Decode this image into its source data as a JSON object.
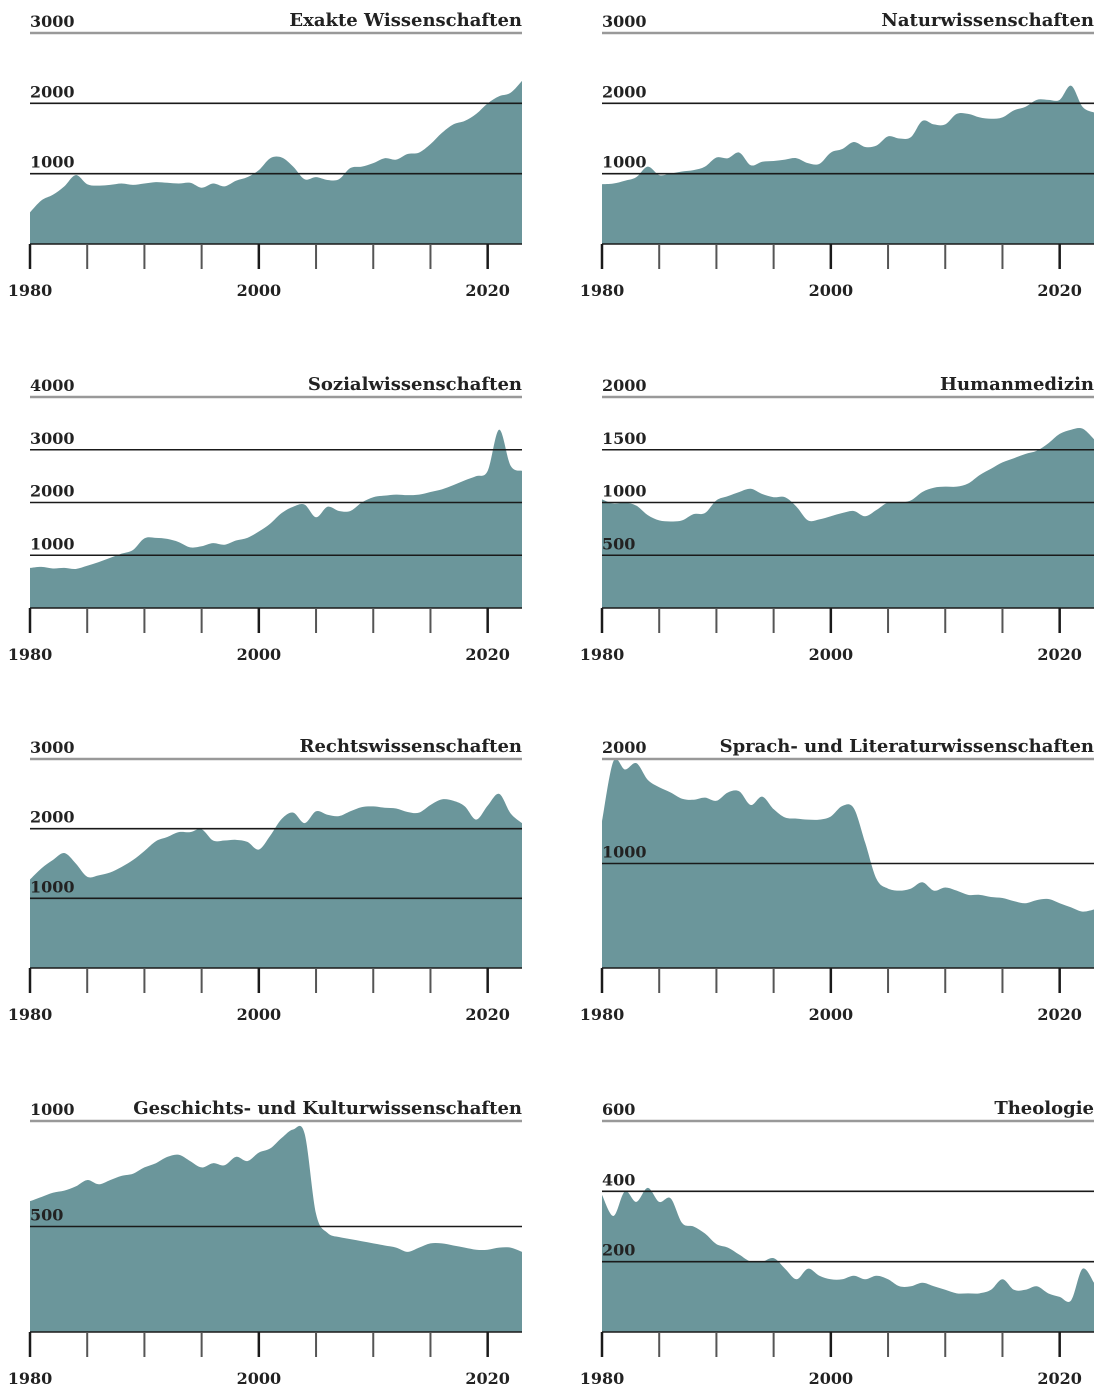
{
  "fill_color": "#6b969b",
  "line_color": "#1a1a1a",
  "top_line_color": "#999999",
  "x_ticks": [
    "1980",
    "2000",
    "2020"
  ],
  "chart_data": [
    {
      "type": "area",
      "title": "Exakte Wissenschaften",
      "ylim": [
        0,
        3000
      ],
      "yticks": [
        1000,
        2000,
        3000
      ],
      "ytick_labels": [
        "1000",
        "2000",
        "3000"
      ],
      "x": [
        1980,
        1981,
        1982,
        1983,
        1984,
        1985,
        1986,
        1987,
        1988,
        1989,
        1990,
        1991,
        1992,
        1993,
        1994,
        1995,
        1996,
        1997,
        1998,
        1999,
        2000,
        2001,
        2002,
        2003,
        2004,
        2005,
        2006,
        2007,
        2008,
        2009,
        2010,
        2011,
        2012,
        2013,
        2014,
        2015,
        2016,
        2017,
        2018,
        2019,
        2020,
        2021,
        2022,
        2023
      ],
      "values": [
        450,
        620,
        700,
        820,
        980,
        850,
        830,
        840,
        860,
        840,
        860,
        880,
        870,
        860,
        870,
        800,
        860,
        820,
        900,
        950,
        1050,
        1220,
        1230,
        1100,
        920,
        950,
        910,
        920,
        1080,
        1100,
        1150,
        1220,
        1200,
        1280,
        1300,
        1420,
        1580,
        1700,
        1750,
        1850,
        2000,
        2100,
        2150,
        2320
      ]
    },
    {
      "type": "area",
      "title": "Naturwissenschaften",
      "ylim": [
        0,
        3000
      ],
      "yticks": [
        1000,
        2000,
        3000
      ],
      "ytick_labels": [
        "1000",
        "2000",
        "3000"
      ],
      "x": [
        1980,
        1981,
        1982,
        1983,
        1984,
        1985,
        1986,
        1987,
        1988,
        1989,
        1990,
        1991,
        1992,
        1993,
        1994,
        1995,
        1996,
        1997,
        1998,
        1999,
        2000,
        2001,
        2002,
        2003,
        2004,
        2005,
        2006,
        2007,
        2008,
        2009,
        2010,
        2011,
        2012,
        2013,
        2014,
        2015,
        2016,
        2017,
        2018,
        2019,
        2020,
        2021,
        2022,
        2023
      ],
      "values": [
        850,
        860,
        900,
        950,
        1100,
        980,
        1000,
        1030,
        1050,
        1100,
        1230,
        1220,
        1300,
        1120,
        1170,
        1180,
        1200,
        1220,
        1150,
        1140,
        1300,
        1350,
        1450,
        1380,
        1400,
        1530,
        1500,
        1520,
        1750,
        1700,
        1700,
        1850,
        1850,
        1800,
        1780,
        1800,
        1900,
        1950,
        2050,
        2050,
        2050,
        2250,
        1950,
        1870
      ]
    },
    {
      "type": "area",
      "title": "Sozialwissenschaften",
      "ylim": [
        0,
        4000
      ],
      "yticks": [
        1000,
        2000,
        3000,
        4000
      ],
      "ytick_labels": [
        "1000",
        "2000",
        "3000",
        "4000"
      ],
      "x": [
        1980,
        1981,
        1982,
        1983,
        1984,
        1985,
        1986,
        1987,
        1988,
        1989,
        1990,
        1991,
        1992,
        1993,
        1994,
        1995,
        1996,
        1997,
        1998,
        1999,
        2000,
        2001,
        2002,
        2003,
        2004,
        2005,
        2006,
        2007,
        2008,
        2009,
        2010,
        2011,
        2012,
        2013,
        2014,
        2015,
        2016,
        2017,
        2018,
        2019,
        2020,
        2021,
        2022,
        2023
      ],
      "values": [
        760,
        780,
        750,
        760,
        740,
        800,
        870,
        950,
        1030,
        1100,
        1320,
        1330,
        1310,
        1250,
        1150,
        1170,
        1230,
        1200,
        1280,
        1330,
        1450,
        1600,
        1800,
        1920,
        1960,
        1720,
        1920,
        1840,
        1840,
        2000,
        2100,
        2130,
        2150,
        2140,
        2150,
        2200,
        2250,
        2330,
        2420,
        2500,
        2600,
        3380,
        2700,
        2600
      ]
    },
    {
      "type": "area",
      "title": "Humanmedizin",
      "ylim": [
        0,
        2000
      ],
      "yticks": [
        500,
        1000,
        1500,
        2000
      ],
      "ytick_labels": [
        "500",
        "1000",
        "1500",
        "2000"
      ],
      "x": [
        1980,
        1981,
        1982,
        1983,
        1984,
        1985,
        1986,
        1987,
        1988,
        1989,
        1990,
        1991,
        1992,
        1993,
        1994,
        1995,
        1996,
        1997,
        1998,
        1999,
        2000,
        2001,
        2002,
        2003,
        2004,
        2005,
        2006,
        2007,
        2008,
        2009,
        2010,
        2011,
        2012,
        2013,
        2014,
        2015,
        2016,
        2017,
        2018,
        2019,
        2020,
        2021,
        2022,
        2023
      ],
      "values": [
        1030,
        990,
        1000,
        970,
        880,
        830,
        820,
        830,
        890,
        900,
        1020,
        1060,
        1100,
        1130,
        1080,
        1050,
        1050,
        960,
        830,
        840,
        870,
        900,
        920,
        870,
        930,
        1000,
        1000,
        1020,
        1100,
        1140,
        1150,
        1150,
        1180,
        1260,
        1320,
        1380,
        1420,
        1460,
        1490,
        1560,
        1650,
        1690,
        1700,
        1600
      ]
    },
    {
      "type": "area",
      "title": "Rechtswissenschaften",
      "ylim": [
        0,
        3000
      ],
      "yticks": [
        1000,
        2000,
        3000
      ],
      "ytick_labels": [
        "1000",
        "2000",
        "3000"
      ],
      "x": [
        1980,
        1981,
        1982,
        1983,
        1984,
        1985,
        1986,
        1987,
        1988,
        1989,
        1990,
        1991,
        1992,
        1993,
        1994,
        1995,
        1996,
        1997,
        1998,
        1999,
        2000,
        2001,
        2002,
        2003,
        2004,
        2005,
        2006,
        2007,
        2008,
        2009,
        2010,
        2011,
        2012,
        2013,
        2014,
        2015,
        2016,
        2017,
        2018,
        2019,
        2020,
        2021,
        2022,
        2023
      ],
      "values": [
        1270,
        1430,
        1550,
        1650,
        1500,
        1310,
        1330,
        1370,
        1450,
        1550,
        1680,
        1820,
        1880,
        1950,
        1950,
        1990,
        1830,
        1830,
        1840,
        1810,
        1700,
        1900,
        2140,
        2230,
        2080,
        2250,
        2200,
        2180,
        2250,
        2310,
        2320,
        2300,
        2290,
        2240,
        2230,
        2340,
        2420,
        2400,
        2320,
        2130,
        2330,
        2500,
        2220,
        2080
      ]
    },
    {
      "type": "area",
      "title": "Sprach- und Literaturwissenschaften",
      "ylim": [
        0,
        2000
      ],
      "yticks": [
        1000,
        2000
      ],
      "ytick_labels": [
        "1000",
        "2000"
      ],
      "x": [
        1980,
        1981,
        1982,
        1983,
        1984,
        1985,
        1986,
        1987,
        1988,
        1989,
        1990,
        1991,
        1992,
        1993,
        1994,
        1995,
        1996,
        1997,
        1998,
        1999,
        2000,
        2001,
        2002,
        2003,
        2004,
        2005,
        2006,
        2007,
        2008,
        2009,
        2010,
        2011,
        2012,
        2013,
        2014,
        2015,
        2016,
        2017,
        2018,
        2019,
        2020,
        2021,
        2022,
        2023
      ],
      "values": [
        1400,
        1980,
        1900,
        1960,
        1800,
        1730,
        1680,
        1620,
        1610,
        1630,
        1600,
        1680,
        1690,
        1560,
        1640,
        1520,
        1440,
        1430,
        1420,
        1420,
        1450,
        1550,
        1530,
        1200,
        850,
        760,
        740,
        760,
        820,
        740,
        770,
        740,
        700,
        700,
        680,
        670,
        640,
        620,
        650,
        660,
        620,
        580,
        540,
        560
      ]
    },
    {
      "type": "area",
      "title": "Geschichts- und Kulturwissenschaften",
      "ylim": [
        0,
        1000
      ],
      "yticks": [
        500,
        1000
      ],
      "ytick_labels": [
        "500",
        "1000"
      ],
      "x": [
        1980,
        1981,
        1982,
        1983,
        1984,
        1985,
        1986,
        1987,
        1988,
        1989,
        1990,
        1991,
        1992,
        1993,
        1994,
        1995,
        1996,
        1997,
        1998,
        1999,
        2000,
        2001,
        2002,
        2003,
        2004,
        2005,
        2006,
        2007,
        2008,
        2009,
        2010,
        2011,
        2012,
        2013,
        2014,
        2015,
        2016,
        2017,
        2018,
        2019,
        2020,
        2021,
        2022,
        2023
      ],
      "values": [
        620,
        640,
        660,
        670,
        690,
        720,
        700,
        720,
        740,
        750,
        780,
        800,
        830,
        840,
        810,
        780,
        800,
        790,
        830,
        810,
        850,
        870,
        920,
        960,
        940,
        560,
        470,
        450,
        440,
        430,
        420,
        410,
        400,
        380,
        400,
        420,
        420,
        410,
        400,
        390,
        390,
        400,
        400,
        380
      ]
    },
    {
      "type": "area",
      "title": "Theologie",
      "ylim": [
        0,
        600
      ],
      "yticks": [
        200,
        400,
        600
      ],
      "ytick_labels": [
        "200",
        "400",
        "600"
      ],
      "x": [
        1980,
        1981,
        1982,
        1983,
        1984,
        1985,
        1986,
        1987,
        1988,
        1989,
        1990,
        1991,
        1992,
        1993,
        1994,
        1995,
        1996,
        1997,
        1998,
        1999,
        2000,
        2001,
        2002,
        2003,
        2004,
        2005,
        2006,
        2007,
        2008,
        2009,
        2010,
        2011,
        2012,
        2013,
        2014,
        2015,
        2016,
        2017,
        2018,
        2019,
        2020,
        2021,
        2022,
        2023
      ],
      "values": [
        390,
        330,
        400,
        370,
        410,
        370,
        380,
        310,
        300,
        280,
        250,
        240,
        220,
        200,
        200,
        210,
        180,
        150,
        180,
        160,
        150,
        150,
        160,
        150,
        160,
        150,
        130,
        130,
        140,
        130,
        120,
        110,
        110,
        110,
        120,
        150,
        120,
        120,
        130,
        110,
        100,
        90,
        180,
        140
      ]
    }
  ]
}
